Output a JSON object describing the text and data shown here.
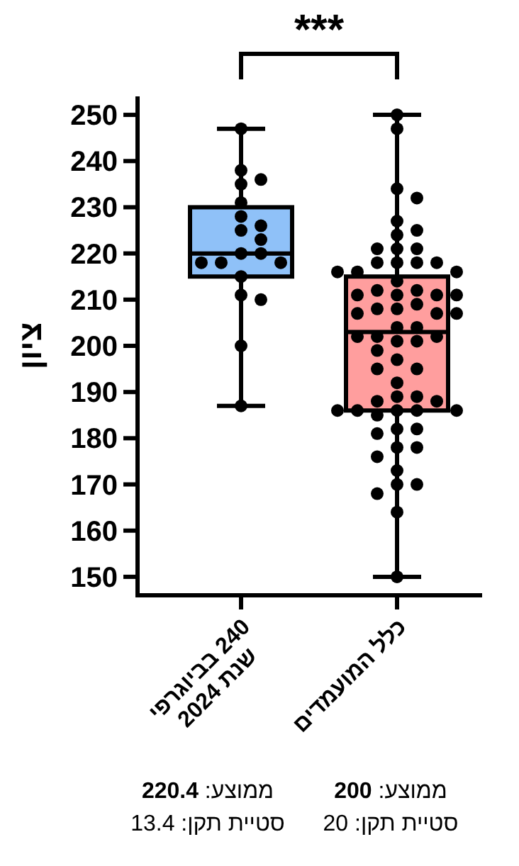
{
  "chart_data": {
    "type": "box",
    "categories": [
      "240 בביוגרפי\nשנת 2024",
      "כלל המועמדים"
    ],
    "colors": [
      "#8fc1f8",
      "#ff9e9e"
    ],
    "boxes": [
      {
        "low": 187,
        "q1": 215,
        "median": 220,
        "q3": 230,
        "high": 247
      },
      {
        "low": 150,
        "q1": 186,
        "median": 203,
        "q3": 215,
        "high": 250
      }
    ],
    "series": [
      {
        "type": "scatter",
        "color": "#000000",
        "marker": "circle",
        "x": [
          "240 בביוגרפי\nשנת 2024",
          "240 בביוגרפי\nשנת 2024",
          "240 בביוגרפי\nשנת 2024",
          "240 בביוגרפי\nשנת 2024",
          "240 בביוגרפי\nשנת 2024",
          "240 בביוגרפי\nשנת 2024",
          "240 בביוגרפי\nשנת 2024",
          "240 בביוגרפי\nשנת 2024",
          "240 בביוגרפי\nשנת 2024",
          "240 בביוגרפי\nשנת 2024",
          "240 בביוגרפי\nשנת 2024",
          "240 בביוגרפי\nשנת 2024",
          "240 בביוגרפי\nשנת 2024",
          "240 בביוגרפי\nשנת 2024",
          "240 בביוגרפי\nשנת 2024",
          "240 בביוגרפי\nשנת 2024",
          "240 בביוגרפי\nשנת 2024",
          "240 בביוגרפי\nשנת 2024",
          "240 בביוגרפי\nשנת 2024",
          "כלל המועמדים",
          "כלל המועמדים",
          "כלל המועמדים",
          "כלל המועמדים",
          "כלל המועמדים",
          "כלל המועמדים",
          "כלל המועמדים",
          "כלל המועמדים",
          "כלל המועמדים",
          "כלל המועמדים",
          "כלל המועמדים",
          "כלל המועמדים",
          "כלל המועמדים",
          "כלל המועמדים",
          "כלל המועמדים",
          "כלל המועמדים",
          "כלל המועמדים",
          "כלל המועמדים",
          "כלל המועמדים",
          "כלל המועמדים",
          "כלל המועמדים",
          "כלל המועמדים",
          "כלל המועמדים",
          "כלל המועמדים",
          "כלל המועמדים",
          "כלל המועמדים",
          "כלל המועמדים",
          "כלל המועמדים",
          "כלל המועמדים",
          "כלל המועמדים",
          "כלל המועמדים",
          "כלל המועמדים",
          "כלל המועמדים",
          "כלל המועמדים",
          "כלל המועמדים",
          "כלל המועמדים",
          "כלל המועמדים",
          "כלל המועמדים",
          "כלל המועמדים",
          "כלל המועמדים",
          "כלל המועמדים",
          "כלל המועמדים",
          "כלל המועמדים",
          "כלל המועמדים",
          "כלל המועמדים",
          "כלל המועמדים",
          "כלל המועמדים",
          "כלל המועמדים",
          "כלל המועמדים",
          "כלל המועמדים",
          "כלל המועמדים",
          "כלל המועמדים",
          "כלל המועמדים",
          "כלל המועמדים",
          "כלל המועמדים",
          "כלל המועמדים",
          "כלל המועמדים",
          "כלל המועמדים",
          "כלל המועמדים",
          "כלל המועמדים",
          "כלל המועמדים",
          "כלל המועמדים",
          "כלל המועמדים",
          "כלל המועמדים"
        ],
        "values": [
          247,
          238,
          236,
          235,
          231,
          228,
          226,
          225,
          223,
          220,
          220,
          218,
          218,
          218,
          215,
          211,
          210,
          200,
          187,
          250,
          247,
          234,
          232,
          227,
          225,
          224,
          221,
          221,
          221,
          218,
          218,
          218,
          218,
          216,
          216,
          216,
          214,
          212,
          212,
          211,
          211,
          211,
          211,
          209,
          208,
          208,
          207,
          207,
          207,
          204,
          204,
          202,
          202,
          202,
          201,
          201,
          199,
          197,
          195,
          195,
          192,
          189,
          189,
          188,
          188,
          186,
          186,
          186,
          186,
          186,
          185,
          182,
          182,
          181,
          178,
          178,
          176,
          173,
          170,
          170,
          168,
          164,
          150
        ]
      }
    ],
    "ylabel": "ציון",
    "ylim": [
      146,
      254
    ],
    "yticks": [
      150,
      160,
      170,
      180,
      190,
      200,
      210,
      220,
      230,
      240,
      250
    ],
    "annotations": [
      "***",
      "ממוצע: 220.4",
      "סטיית תקן: 13.4",
      "ממוצע: 200",
      "סטיית תקן: 20"
    ]
  }
}
